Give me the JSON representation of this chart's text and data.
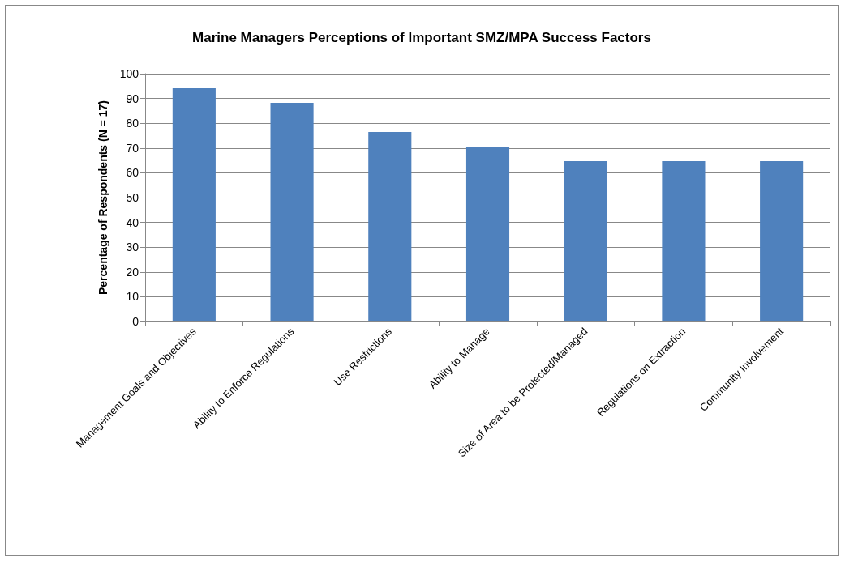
{
  "chart_data": {
    "type": "bar",
    "title": "Marine Managers Perceptions of Important SMZ/MPA Success Factors",
    "ylabel": "Percentage of Respondents (N = 17)",
    "categories": [
      "Management Goals and Objectives",
      "Ability to Enforce Regulations",
      "Use Restrictions",
      "Ability to Manage",
      "Size of Area to be Protected/Managed",
      "Regulations on Extraction",
      "Community Involvement"
    ],
    "values": [
      94.1,
      88.2,
      76.5,
      70.6,
      64.7,
      64.7,
      64.7
    ],
    "color": "#4f81bd",
    "ylim": [
      0,
      100
    ],
    "yticks": [
      0,
      10,
      20,
      30,
      40,
      50,
      60,
      70,
      80,
      90,
      100
    ],
    "grid": "y"
  }
}
